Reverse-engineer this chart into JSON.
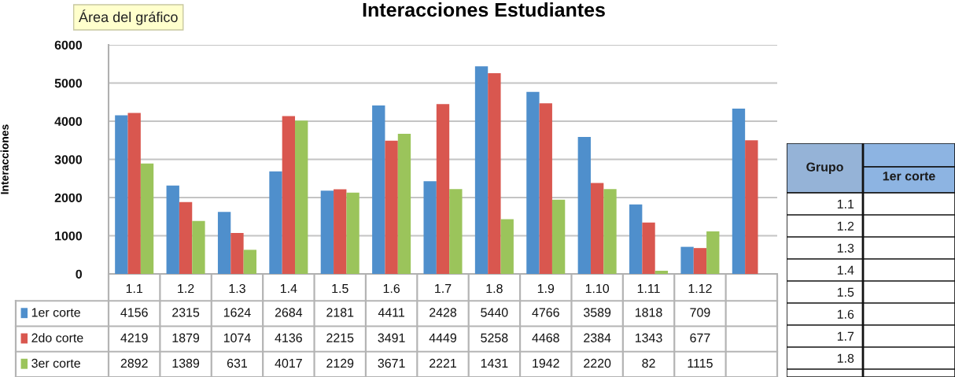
{
  "chart_data": [
    {
      "type": "bar",
      "title": "Interacciones Estudiantes",
      "ylabel": "Interacciones",
      "annotations": [
        "Área del gráfico"
      ],
      "categories": [
        "1.1",
        "1.2",
        "1.3",
        "1.4",
        "1.5",
        "1.6",
        "1.7",
        "1.8",
        "1.9",
        "1.10",
        "1.11",
        "1.12",
        null
      ],
      "series": [
        {
          "name": "1er corte",
          "color": "#4f8fcc",
          "values": [
            4156,
            2315,
            1624,
            2684,
            2181,
            4411,
            2428,
            5440,
            4766,
            3589,
            1818,
            709,
            4330
          ],
          "value_labels": [
            "4156",
            "2315",
            "1624",
            "2684",
            "2181",
            "4411",
            "2428",
            "5440",
            "4766",
            "3589",
            "1818",
            "709",
            null
          ]
        },
        {
          "name": "2do corte",
          "color": "#d9574f",
          "values": [
            4219,
            1879,
            1074,
            4136,
            2215,
            3491,
            4449,
            5258,
            4468,
            2384,
            1343,
            677,
            3500
          ],
          "value_labels": [
            "4219",
            "1879",
            "1074",
            "4136",
            "2215",
            "3491",
            "4449",
            "5258",
            "4468",
            "2384",
            "1343",
            "677",
            null
          ]
        },
        {
          "name": "3er corte",
          "color": "#9bc45b",
          "values": [
            2892,
            1389,
            631,
            4017,
            2129,
            3671,
            2221,
            1431,
            1942,
            2220,
            82,
            1115,
            null
          ],
          "value_labels": [
            "2892",
            "1389",
            "631",
            "4017",
            "2129",
            "3671",
            "2221",
            "1431",
            "1942",
            "2220",
            "82",
            "1115",
            null
          ]
        }
      ],
      "ylim": [
        0,
        6000
      ],
      "yticks": [
        0,
        1000,
        2000,
        3000,
        4000,
        5000,
        6000
      ],
      "grid": "y",
      "legend": "bottom"
    },
    {
      "type": "heatmap",
      "ylabel": "Grupo",
      "categories": [
        "1er corte"
      ],
      "y_categories": [
        "1.1",
        "1.2",
        "1.3",
        "1.4",
        "1.5",
        "1.6",
        "1.7",
        "1.8"
      ],
      "cells": [
        [
          null
        ],
        [
          null
        ],
        [
          null
        ],
        [
          null
        ],
        [
          null
        ],
        [
          null
        ],
        [
          null
        ],
        [
          null
        ]
      ]
    }
  ]
}
